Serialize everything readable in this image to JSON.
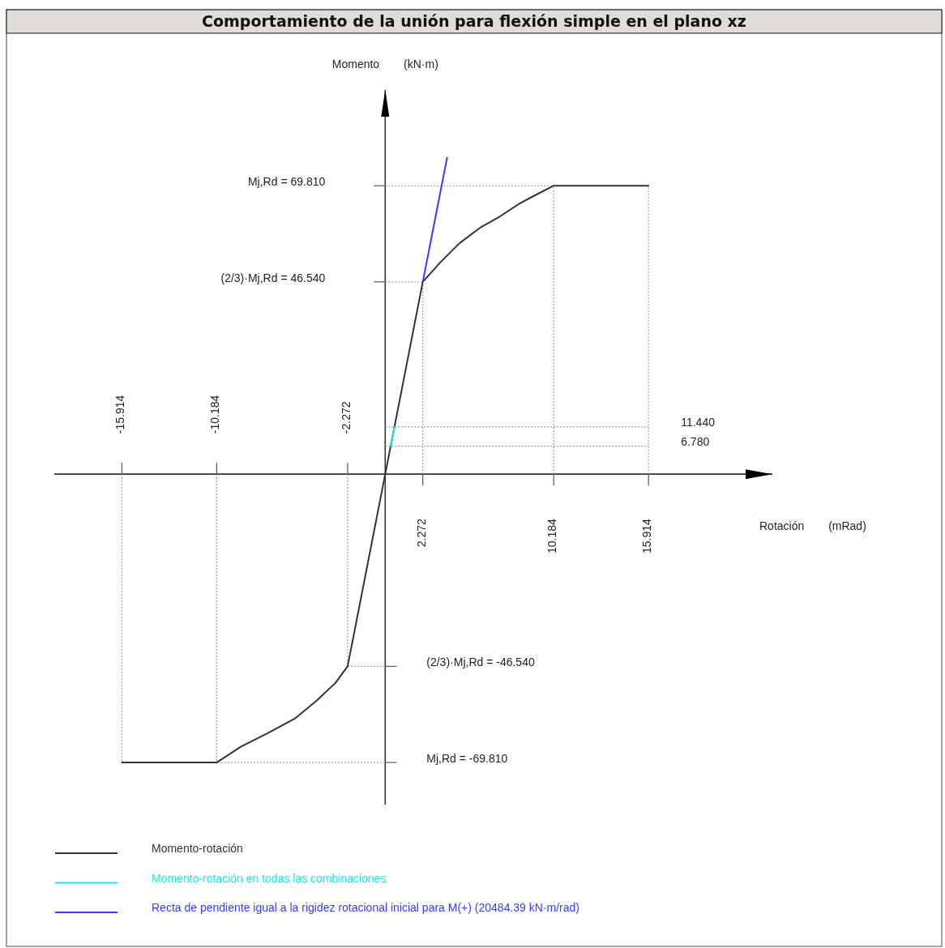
{
  "chart_data": {
    "type": "line",
    "title": "Comportamiento de la unión para flexión simple en el plano xz",
    "xlabel": "Rotación (mRad)",
    "ylabel": "Momento (kN·m)",
    "xlim": [
      -20,
      23.4
    ],
    "ylim": [
      -80,
      93
    ],
    "xticks": [
      2.272,
      10.184,
      15.914
    ],
    "x2lim": [
      -20,
      23.4
    ],
    "x2ticks": [
      -15.914,
      -10.184,
      -2.272
    ],
    "yticks": [
      {
        "value": 69.81,
        "label": null
      },
      {
        "value": 46.54,
        "label": null
      },
      {
        "value": 11.44,
        "label": "11.440"
      },
      {
        "value": 6.78,
        "label": "6.780"
      },
      {
        "value": -46.54,
        "label": null
      },
      {
        "value": -69.81,
        "label": null
      }
    ],
    "annotations": [
      "Mj,Rd = 69.810",
      "(2/3)·Mj,Rd = 46.540",
      "(2/3)·Mj,Rd = -46.540",
      "Mj,Rd = -69.810"
    ],
    "legend": "bottom left",
    "series": [
      {
        "color": "#999999",
        "line_style": "dotted",
        "x": [
          -15.914,
          -15.914
        ],
        "values": [
          0,
          -69.81
        ]
      },
      {
        "color": "#999999",
        "line_style": "dotted",
        "x": [
          -10.184,
          -10.184
        ],
        "values": [
          0,
          -69.81
        ]
      },
      {
        "color": "#999999",
        "line_style": "dotted",
        "x": [
          -2.272,
          -2.272
        ],
        "values": [
          0,
          -46.54
        ]
      },
      {
        "color": "#999999",
        "line_style": "dotted",
        "x": [
          2.272,
          2.272
        ],
        "values": [
          0,
          46.54
        ]
      },
      {
        "color": "#999999",
        "line_style": "dotted",
        "x": [
          10.184,
          10.184
        ],
        "values": [
          0,
          69.81
        ]
      },
      {
        "color": "#999999",
        "line_style": "dotted",
        "x": [
          15.914,
          15.914
        ],
        "values": [
          0,
          69.81
        ]
      },
      {
        "color": "#999999",
        "line_style": "dotted",
        "x": [
          0,
          10.184
        ],
        "values": [
          69.81,
          69.81
        ]
      },
      {
        "color": "#999999",
        "line_style": "dotted",
        "x": [
          0,
          2.272
        ],
        "values": [
          46.54,
          46.54
        ]
      },
      {
        "color": "#999999",
        "line_style": "dotted",
        "x": [
          0,
          15.914
        ],
        "values": [
          11.44,
          11.44
        ]
      },
      {
        "color": "#999999",
        "line_style": "dotted",
        "x": [
          0,
          15.914
        ],
        "values": [
          6.78,
          6.78
        ]
      },
      {
        "color": "#999999",
        "line_style": "dotted",
        "x": [
          0,
          -2.272
        ],
        "values": [
          -46.54,
          -46.54
        ]
      },
      {
        "color": "#999999",
        "line_style": "dotted",
        "x": [
          0,
          -10.184
        ],
        "values": [
          -69.81,
          -69.81
        ]
      },
      {
        "name": "Momento-rotación",
        "color": "#333333",
        "x": [
          -15.914,
          -10.184,
          -8.73,
          -7.1,
          -5.47,
          -4.16,
          -3.02,
          -2.272,
          0,
          2.272,
          3.34,
          4.49,
          5.79,
          6.94,
          8.08,
          9.06,
          10.184,
          15.914
        ],
        "values": [
          -69.81,
          -69.81,
          -66.0,
          -62.7,
          -59.2,
          -54.9,
          -50.6,
          -46.54,
          0,
          46.54,
          51.3,
          55.9,
          59.8,
          62.4,
          65.4,
          67.5,
          69.81,
          69.81
        ]
      },
      {
        "name": "Momento-rotación en todas las combinaciones",
        "color": "#1ee6ee",
        "x": [
          0.331,
          0.558
        ],
        "values": [
          6.78,
          11.44
        ]
      },
      {
        "name": "Recta de pendiente igual a la rigidez rotacional inicial para M(+) (20484.39 kN·m/rad)",
        "color": "#3a3aff",
        "x": [
          2.272,
          3.74
        ],
        "values": [
          46.54,
          76.6
        ]
      }
    ]
  }
}
